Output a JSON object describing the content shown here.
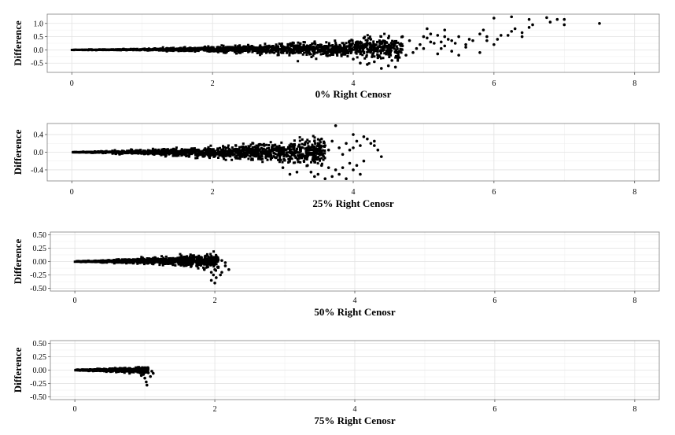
{
  "chart_data": [
    {
      "type": "scatter",
      "xlabel": "0% Right Cenosr",
      "ylabel": "Difference",
      "xlim": [
        -0.35,
        8.35
      ],
      "ylim": [
        -0.85,
        1.35
      ],
      "xticks": [
        0,
        2,
        4,
        6,
        8
      ],
      "yticks": [
        1.0,
        0.5,
        0.0,
        -0.5
      ],
      "ytick_labels": [
        "1.0",
        "0.5",
        "0.0",
        "-0.5"
      ],
      "grid": true,
      "legend": "none",
      "points": [
        [
          4.1,
          0.3
        ],
        [
          4.2,
          0.35
        ],
        [
          4.3,
          0.2
        ],
        [
          4.4,
          0.3
        ],
        [
          4.6,
          0.25
        ],
        [
          4.7,
          0.15
        ],
        [
          4.8,
          0.35
        ],
        [
          4.9,
          0.05
        ],
        [
          5.0,
          0.5
        ],
        [
          5.05,
          0.45
        ],
        [
          5.1,
          0.3
        ],
        [
          5.15,
          0.25
        ],
        [
          5.2,
          0.55
        ],
        [
          5.25,
          0.3
        ],
        [
          5.3,
          0.15
        ],
        [
          5.35,
          0.4
        ],
        [
          5.4,
          0.35
        ],
        [
          5.45,
          0.25
        ],
        [
          5.5,
          0.5
        ],
        [
          5.6,
          0.2
        ],
        [
          5.65,
          0.4
        ],
        [
          5.7,
          0.35
        ],
        [
          5.8,
          0.6
        ],
        [
          5.85,
          0.75
        ],
        [
          5.9,
          0.5
        ],
        [
          6.0,
          0.2
        ],
        [
          6.05,
          0.4
        ],
        [
          6.1,
          0.55
        ],
        [
          6.2,
          0.55
        ],
        [
          6.25,
          0.7
        ],
        [
          6.3,
          0.8
        ],
        [
          6.4,
          0.65
        ],
        [
          6.5,
          0.85
        ],
        [
          5.3,
          0.75
        ],
        [
          5.2,
          -0.15
        ],
        [
          5.4,
          -0.05
        ],
        [
          5.5,
          -0.2
        ],
        [
          5.25,
          0.05
        ],
        [
          5.6,
          0.1
        ],
        [
          5.8,
          -0.1
        ],
        [
          5.9,
          0.35
        ],
        [
          6.0,
          1.2
        ],
        [
          6.25,
          1.25
        ],
        [
          6.5,
          1.15
        ],
        [
          6.75,
          1.22
        ],
        [
          6.9,
          1.15
        ],
        [
          7.0,
          1.15
        ],
        [
          7.0,
          0.95
        ],
        [
          6.8,
          1.05
        ],
        [
          6.55,
          0.95
        ],
        [
          6.4,
          0.5
        ],
        [
          4.95,
          0.2
        ],
        [
          5.1,
          0.6
        ],
        [
          5.3,
          0.5
        ],
        [
          5.05,
          0.8
        ],
        [
          4.5,
          -0.6
        ],
        [
          4.6,
          -0.65
        ],
        [
          4.2,
          -0.55
        ],
        [
          4.3,
          -0.45
        ],
        [
          4.1,
          -0.5
        ],
        [
          4.0,
          -0.35
        ],
        [
          4.4,
          -0.7
        ],
        [
          4.7,
          0.5
        ],
        [
          4.45,
          0.25
        ],
        [
          5.0,
          0.05
        ],
        [
          4.85,
          -0.1
        ],
        [
          4.75,
          -0.2
        ],
        [
          4.55,
          -0.4
        ],
        [
          4.35,
          -0.3
        ],
        [
          4.25,
          0.4
        ],
        [
          4.15,
          0.45
        ],
        [
          4.05,
          0.3
        ],
        [
          3.95,
          0.2
        ],
        [
          4.5,
          0.45
        ],
        [
          7.5,
          1.0
        ]
      ]
    },
    {
      "type": "scatter",
      "xlabel": "25% Right Cenosr",
      "ylabel": "Difference",
      "xlim": [
        -0.35,
        8.35
      ],
      "ylim": [
        -0.65,
        0.65
      ],
      "xticks": [
        0,
        2,
        4,
        6,
        8
      ],
      "yticks": [
        0.4,
        0.0,
        -0.4
      ],
      "ytick_labels": [
        "0.4",
        "0.0",
        "-0.4"
      ],
      "grid": true,
      "legend": "none",
      "points": [
        [
          3.4,
          -0.45
        ],
        [
          3.45,
          -0.55
        ],
        [
          3.5,
          -0.5
        ],
        [
          3.55,
          -0.3
        ],
        [
          3.6,
          -0.6
        ],
        [
          3.7,
          -0.55
        ],
        [
          3.75,
          -0.4
        ],
        [
          3.8,
          -0.5
        ],
        [
          3.85,
          -0.35
        ],
        [
          3.9,
          -0.6
        ],
        [
          3.95,
          -0.25
        ],
        [
          4.0,
          -0.4
        ],
        [
          4.05,
          -0.3
        ],
        [
          4.1,
          -0.5
        ],
        [
          4.15,
          -0.2
        ],
        [
          3.65,
          -0.35
        ],
        [
          3.35,
          -0.3
        ],
        [
          3.2,
          -0.45
        ],
        [
          3.1,
          -0.5
        ],
        [
          3.0,
          -0.35
        ],
        [
          3.3,
          -0.2
        ],
        [
          3.5,
          0.2
        ],
        [
          3.6,
          0.15
        ],
        [
          3.7,
          0.25
        ],
        [
          3.8,
          0.1
        ],
        [
          3.9,
          0.2
        ],
        [
          4.0,
          0.1
        ],
        [
          4.05,
          0.25
        ],
        [
          4.1,
          0.15
        ],
        [
          4.2,
          0.3
        ],
        [
          4.25,
          0.2
        ],
        [
          4.3,
          0.15
        ],
        [
          4.35,
          0.05
        ],
        [
          4.15,
          0.35
        ],
        [
          3.75,
          0.6
        ],
        [
          3.55,
          0.3
        ],
        [
          3.45,
          0.25
        ],
        [
          3.95,
          0.05
        ],
        [
          4.4,
          -0.1
        ],
        [
          3.85,
          -0.05
        ],
        [
          4.3,
          0.25
        ],
        [
          4.0,
          0.4
        ],
        [
          3.65,
          0.05
        ]
      ]
    },
    {
      "type": "scatter",
      "xlabel": "50% Right Cenosr",
      "ylabel": "Difference",
      "xlim": [
        -0.35,
        8.35
      ],
      "ylim": [
        -0.55,
        0.55
      ],
      "xticks": [
        0,
        2,
        4,
        6,
        8
      ],
      "yticks": [
        0.5,
        0.25,
        0.0,
        -0.25,
        -0.5
      ],
      "ytick_labels": [
        "0.50",
        "0.25",
        "0.00",
        "-0.25",
        "-0.50"
      ],
      "grid": true,
      "legend": "none",
      "points": [
        [
          1.9,
          -0.1
        ],
        [
          1.95,
          -0.2
        ],
        [
          2.0,
          -0.15
        ],
        [
          2.05,
          -0.1
        ],
        [
          2.1,
          -0.2
        ],
        [
          2.15,
          -0.08
        ],
        [
          2.2,
          -0.15
        ],
        [
          1.85,
          -0.15
        ],
        [
          1.95,
          -0.35
        ],
        [
          2.0,
          -0.4
        ],
        [
          2.02,
          -0.3
        ],
        [
          2.08,
          -0.25
        ],
        [
          1.9,
          0.05
        ],
        [
          2.0,
          0.05
        ],
        [
          2.1,
          0.02
        ],
        [
          1.8,
          0.08
        ],
        [
          2.15,
          -0.02
        ],
        [
          1.98,
          -0.25
        ],
        [
          2.05,
          0.03
        ]
      ]
    },
    {
      "type": "scatter",
      "xlabel": "75% Right Cenosr",
      "ylabel": "Difference",
      "xlim": [
        -0.35,
        8.35
      ],
      "ylim": [
        -0.55,
        0.55
      ],
      "xticks": [
        0,
        2,
        4,
        6,
        8
      ],
      "yticks": [
        0.5,
        0.25,
        0.0,
        -0.25,
        -0.5
      ],
      "ytick_labels": [
        "0.50",
        "0.25",
        "0.00",
        "-0.25",
        "-0.50"
      ],
      "grid": true,
      "legend": "none",
      "points": [
        [
          0.95,
          -0.1
        ],
        [
          1.0,
          -0.15
        ],
        [
          1.02,
          -0.22
        ],
        [
          1.05,
          -0.05
        ],
        [
          1.08,
          -0.12
        ],
        [
          1.1,
          -0.02
        ],
        [
          0.98,
          -0.08
        ],
        [
          0.9,
          0.05
        ],
        [
          1.0,
          0.03
        ],
        [
          1.03,
          -0.28
        ],
        [
          0.93,
          -0.05
        ],
        [
          1.12,
          -0.06
        ]
      ]
    }
  ]
}
